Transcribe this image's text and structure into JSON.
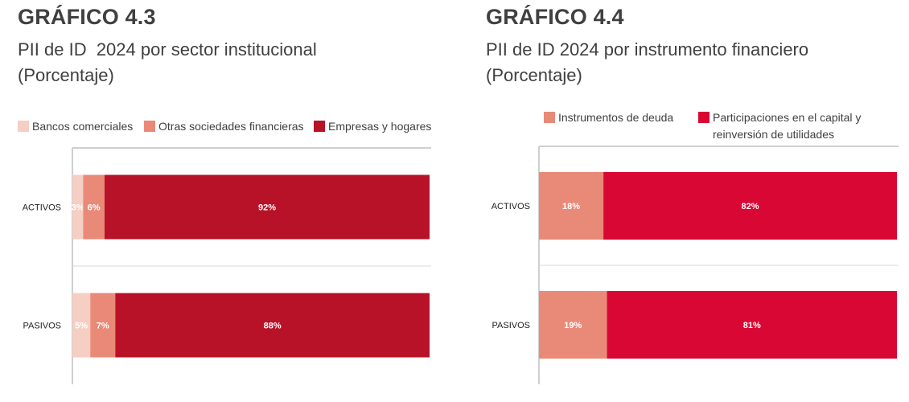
{
  "colors": {
    "bancos": "#f5cfc4",
    "otras": "#e98a78",
    "empresas": "#b81228",
    "deuda": "#e98a78",
    "participaciones": "#d90733",
    "grid": "#d9d9d9",
    "divider": "#bfbfbf"
  },
  "chart_data": [
    {
      "type": "bar",
      "orientation": "horizontal-stacked",
      "title": "GRÁFICO 4.3",
      "subtitle": "PII de ID  2024 por sector institucional",
      "unit": "(Porcentaje)",
      "categories": [
        "ACTIVOS",
        "PASIVOS"
      ],
      "series": [
        {
          "name": "Bancos comerciales",
          "values": [
            3,
            5
          ],
          "labels": [
            "3%",
            "5%"
          ],
          "color_key": "bancos"
        },
        {
          "name": "Otras sociedades financieras",
          "values": [
            6,
            7
          ],
          "labels": [
            "6%",
            "7%"
          ],
          "color_key": "otras"
        },
        {
          "name": "Empresas y hogares",
          "values": [
            92,
            88
          ],
          "labels": [
            "92%",
            "88%"
          ],
          "color_key": "empresas"
        }
      ],
      "xlim": [
        0,
        100
      ],
      "legend": "top",
      "grid": true
    },
    {
      "type": "bar",
      "orientation": "horizontal-stacked",
      "title": "GRÁFICO 4.4",
      "subtitle": "PII de ID 2024 por instrumento financiero",
      "unit": "(Porcentaje)",
      "categories": [
        "ACTIVOS",
        "PASIVOS"
      ],
      "series": [
        {
          "name": "Instrumentos de deuda",
          "values": [
            18,
            19
          ],
          "labels": [
            "18%",
            "19%"
          ],
          "color_key": "deuda"
        },
        {
          "name": "Participaciones en el capital y\nreinversión de utilidades",
          "values": [
            82,
            81
          ],
          "labels": [
            "82%",
            "81%"
          ],
          "color_key": "participaciones"
        }
      ],
      "xlim": [
        0,
        100
      ],
      "legend": "top",
      "grid": true
    }
  ]
}
